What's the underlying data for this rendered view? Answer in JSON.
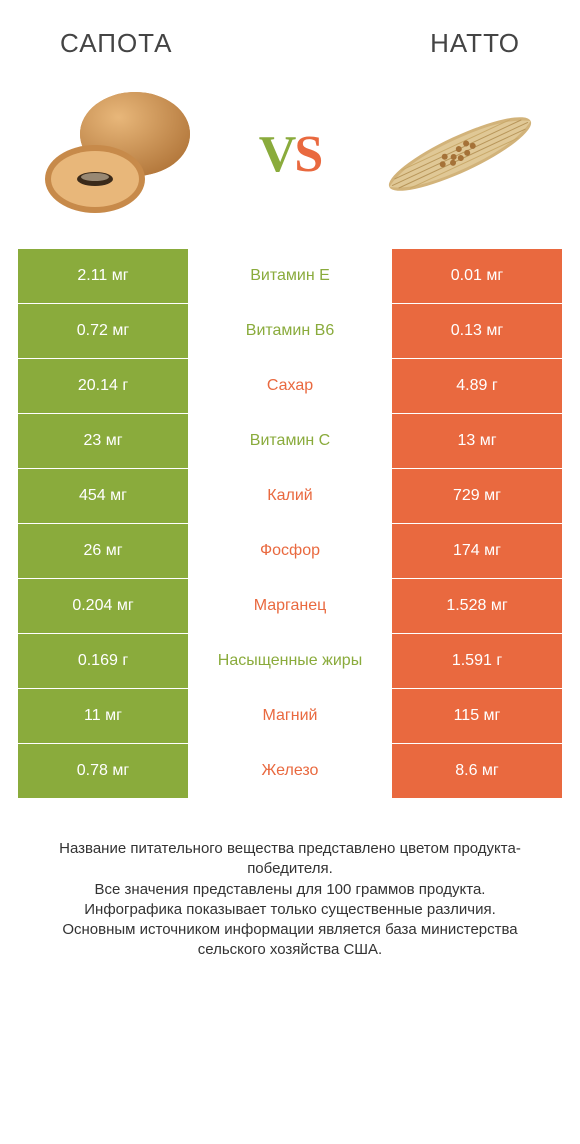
{
  "header": {
    "left_title": "САПОТА",
    "right_title": "НАТТО"
  },
  "vs": {
    "v": "V",
    "s": "S"
  },
  "colors": {
    "green": "#8aab3c",
    "orange": "#e9693f",
    "sapota_skin": "#c78a4a",
    "sapota_flesh": "#e8b77a",
    "sapota_seed": "#3a2a1a",
    "natto_straw": "#d2b37a",
    "natto_bean": "#a57238"
  },
  "rows": [
    {
      "left": "2.11 мг",
      "mid": "Витамин E",
      "right": "0.01 мг",
      "winner": "left"
    },
    {
      "left": "0.72 мг",
      "mid": "Витамин B6",
      "right": "0.13 мг",
      "winner": "left"
    },
    {
      "left": "20.14 г",
      "mid": "Сахар",
      "right": "4.89 г",
      "winner": "right"
    },
    {
      "left": "23 мг",
      "mid": "Витамин C",
      "right": "13 мг",
      "winner": "left"
    },
    {
      "left": "454 мг",
      "mid": "Калий",
      "right": "729 мг",
      "winner": "right"
    },
    {
      "left": "26 мг",
      "mid": "Фосфор",
      "right": "174 мг",
      "winner": "right"
    },
    {
      "left": "0.204 мг",
      "mid": "Марганец",
      "right": "1.528 мг",
      "winner": "right"
    },
    {
      "left": "0.169 г",
      "mid": "Насыщенные жиры",
      "right": "1.591 г",
      "winner": "left"
    },
    {
      "left": "11 мг",
      "mid": "Магний",
      "right": "115 мг",
      "winner": "right"
    },
    {
      "left": "0.78 мг",
      "mid": "Железо",
      "right": "8.6 мг",
      "winner": "right"
    }
  ],
  "footnote": {
    "line1": "Название питательного вещества представлено цветом продукта-победителя.",
    "line2": "Все значения представлены для 100 граммов продукта.",
    "line3": "Инфографика показывает только существенные различия.",
    "line4": "Основным источником информации является база министерства сельского хозяйства США."
  }
}
